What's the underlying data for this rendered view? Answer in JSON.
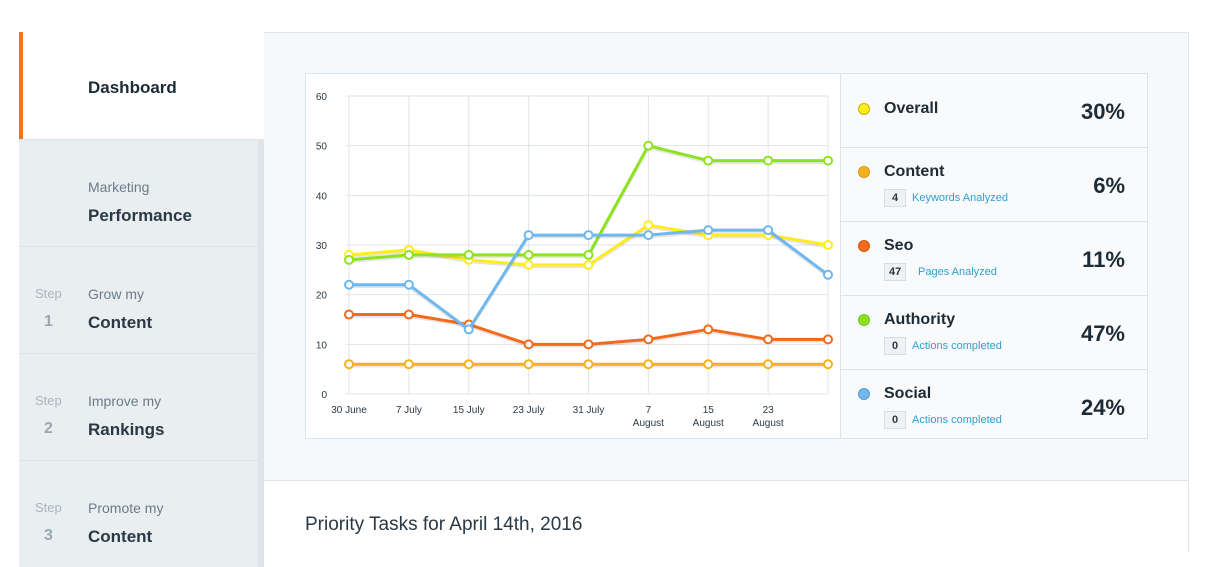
{
  "sidebar": {
    "dashboard": "Dashboard",
    "marketing": {
      "sub": "Marketing",
      "main": "Performance"
    },
    "steps": [
      {
        "word": "Step",
        "num": "1",
        "sub": "Grow my",
        "main": "Content"
      },
      {
        "word": "Step",
        "num": "2",
        "sub": "Improve my",
        "main": "Rankings"
      },
      {
        "word": "Step",
        "num": "3",
        "sub": "Promote my",
        "main": "Content"
      }
    ]
  },
  "legend": [
    {
      "name": "Overall",
      "percent": "30%",
      "color": "#ffec1a"
    },
    {
      "name": "Content",
      "percent": "6%",
      "color": "#f6b21b",
      "count": "4",
      "caption": "Keywords Analyzed"
    },
    {
      "name": "Seo",
      "percent": "11%",
      "color": "#f46a1c",
      "count": "47",
      "caption": "Pages Analyzed"
    },
    {
      "name": "Authority",
      "percent": "47%",
      "color": "#8ee31e",
      "count": "0",
      "caption": "Actions completed"
    },
    {
      "name": "Social",
      "percent": "24%",
      "color": "#6fb8ee",
      "count": "0",
      "caption": "Actions completed"
    }
  ],
  "priority_title": "Priority Tasks for April 14th, 2016",
  "chart_data": {
    "type": "line",
    "x": [
      "30 June",
      "7 July",
      "15 July",
      "23 July",
      "31 July",
      "7 August",
      "15 August",
      "23 August",
      ""
    ],
    "ylim": [
      0,
      60
    ],
    "yticks": [
      0,
      10,
      20,
      30,
      40,
      50,
      60
    ],
    "grid": true,
    "series": [
      {
        "name": "Overall",
        "color": "#ffec1a",
        "values": [
          28,
          29,
          27,
          26,
          26,
          34,
          32,
          32,
          30
        ]
      },
      {
        "name": "Content",
        "color": "#f6b21b",
        "values": [
          6,
          6,
          6,
          6,
          6,
          6,
          6,
          6,
          6
        ]
      },
      {
        "name": "Seo",
        "color": "#f46a1c",
        "values": [
          16,
          16,
          14,
          10,
          10,
          11,
          13,
          11,
          11
        ]
      },
      {
        "name": "Authority",
        "color": "#8ee31e",
        "values": [
          27,
          28,
          28,
          28,
          28,
          50,
          47,
          47,
          47
        ]
      },
      {
        "name": "Social",
        "color": "#6fb8ee",
        "values": [
          22,
          22,
          13,
          32,
          32,
          32,
          33,
          33,
          24
        ]
      }
    ]
  }
}
